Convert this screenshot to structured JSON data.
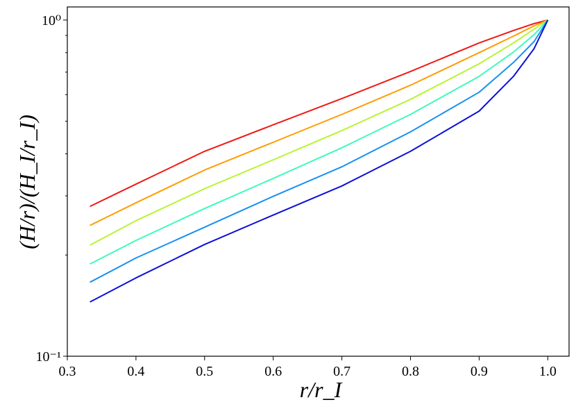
{
  "chart_data": {
    "type": "line",
    "xlabel": "r/r_I",
    "ylabel": "(H/r)/(H_I/r_I)",
    "x": [
      0.333,
      0.4,
      0.5,
      0.6,
      0.7,
      0.8,
      0.9,
      0.95,
      0.98,
      1.0
    ],
    "series": [
      {
        "color": "#ee1a13",
        "values": [
          0.279,
          0.325,
          0.407,
          0.488,
          0.584,
          0.703,
          0.855,
          0.931,
          0.976,
          1.0
        ]
      },
      {
        "color": "#ff9c00",
        "values": [
          0.245,
          0.286,
          0.358,
          0.433,
          0.524,
          0.64,
          0.8,
          0.896,
          0.961,
          1.0
        ]
      },
      {
        "color": "#b8f432",
        "values": [
          0.214,
          0.253,
          0.315,
          0.384,
          0.469,
          0.581,
          0.741,
          0.855,
          0.94,
          1.0
        ]
      },
      {
        "color": "#3dfbb8",
        "values": [
          0.188,
          0.221,
          0.275,
          0.338,
          0.417,
          0.524,
          0.68,
          0.803,
          0.905,
          1.0
        ]
      },
      {
        "color": "#1890f0",
        "values": [
          0.166,
          0.196,
          0.242,
          0.299,
          0.366,
          0.465,
          0.61,
          0.748,
          0.863,
          1.0
        ]
      },
      {
        "color": "#0b10d8",
        "values": [
          0.145,
          0.171,
          0.215,
          0.263,
          0.321,
          0.407,
          0.536,
          0.68,
          0.822,
          1.0
        ]
      }
    ],
    "xlim": [
      0.3,
      1.031
    ],
    "xticks": [
      0.3,
      0.4,
      0.5,
      0.6,
      0.7,
      0.8,
      0.9,
      {
        "value": 1.0,
        "label": "1.0"
      }
    ],
    "ylim": [
      0.1,
      1.094
    ],
    "ylog": true,
    "yticks": [
      {
        "value": 0.1,
        "label": "10⁻¹"
      },
      {
        "value": 1,
        "label": "10⁰"
      }
    ],
    "yminorticks": [
      0.2,
      0.3,
      0.4,
      0.5,
      0.6,
      0.7,
      0.8,
      0.9
    ],
    "grid": false
  }
}
